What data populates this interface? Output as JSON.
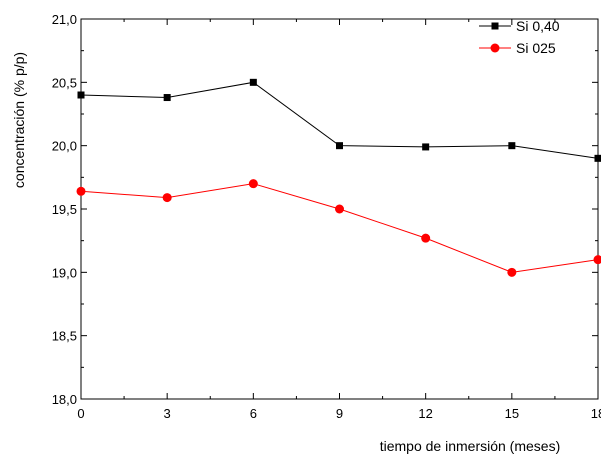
{
  "chart_data": {
    "type": "line",
    "xlabel": "tiempo de inmersión (meses)",
    "ylabel": "concentración (% p/p)",
    "x": [
      0,
      3,
      6,
      9,
      12,
      15,
      18
    ],
    "xlim": [
      0,
      18
    ],
    "ylim": [
      18.0,
      21.0
    ],
    "x_ticks": [
      "0",
      "3",
      "6",
      "9",
      "12",
      "15",
      "18"
    ],
    "y_ticks": [
      "18,0",
      "18,5",
      "19,0",
      "19,5",
      "20,0",
      "20,5",
      "21,0"
    ],
    "grid": false,
    "legend_position": "top-right",
    "series": [
      {
        "name": "Si 0,40",
        "color": "#000000",
        "marker": "square",
        "values": [
          20.4,
          20.38,
          20.5,
          20.0,
          19.99,
          20.0,
          19.9
        ]
      },
      {
        "name": "Si 025",
        "color": "#ff0000",
        "marker": "circle",
        "values": [
          19.64,
          19.59,
          19.7,
          19.5,
          19.27,
          19.0,
          19.1
        ]
      }
    ]
  }
}
